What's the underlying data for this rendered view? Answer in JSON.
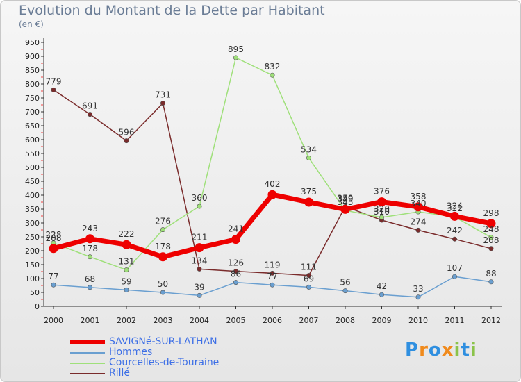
{
  "chart_data": {
    "type": "line",
    "title": "Evolution du Montant de la Dette par Habitant",
    "subtitle": "(en €)",
    "xlabel": "",
    "ylabel": "",
    "categories": [
      "2000",
      "2001",
      "2002",
      "2003",
      "2004",
      "2005",
      "2006",
      "2007",
      "2008",
      "2009",
      "2010",
      "2011",
      "2012"
    ],
    "ylim": [
      0,
      950
    ],
    "ytick_step": 50,
    "grid": false,
    "legend_position": "bottom-left",
    "series": [
      {
        "name": "SAVIGNé-SUR-LATHAN",
        "color": "#ee0000",
        "values": [
          208,
          243,
          222,
          178,
          211,
          241,
          402,
          375,
          349,
          376,
          358,
          324,
          298
        ]
      },
      {
        "name": "Hommes",
        "color": "#6a9fd0",
        "values": [
          77,
          68,
          59,
          50,
          39,
          86,
          77,
          69,
          56,
          42,
          33,
          107,
          88
        ]
      },
      {
        "name": "Courcelles-de-Touraine",
        "color": "#9fe07a",
        "values": [
          228,
          178,
          131,
          276,
          360,
          895,
          832,
          534,
          345,
          320,
          340,
          322,
          248
        ]
      },
      {
        "name": "Rillé",
        "color": "#7a2b2b",
        "values": [
          779,
          691,
          596,
          731,
          134,
          126,
          119,
          111,
          359,
          310,
          274,
          242,
          208
        ]
      }
    ]
  },
  "logo": {
    "text": "Proxiti"
  }
}
